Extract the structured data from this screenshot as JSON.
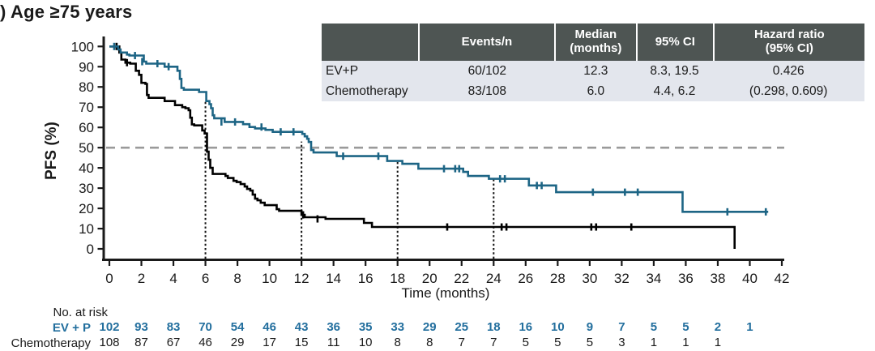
{
  "title": ") Age ≥75 years",
  "colors": {
    "evp_curve": "#1d6585",
    "chemo_curve": "#000000",
    "at_risk_evp_text": "#236f9e",
    "table_header_bg": "#4e5553",
    "table_row_bg": "#e3e6ed",
    "median_reference_line": "#9a9a9a",
    "axis": "#1a1a1a"
  },
  "table": {
    "headers": [
      "",
      "Events/n",
      "Median\n(months)",
      "95% CI",
      "Hazard ratio\n(95% CI)"
    ],
    "rows": [
      {
        "cells": [
          "EV+P",
          "60/102",
          "12.3",
          "8.3, 19.5",
          "0.426"
        ]
      },
      {
        "cells": [
          "Chemotherapy",
          "83/108",
          "6.0",
          "4.4, 6.2",
          "(0.298, 0.609)"
        ]
      }
    ]
  },
  "chart_data": {
    "type": "line",
    "subtype": "kaplan-meier-step",
    "title": ") Age ≥75 years",
    "xlabel": "Time (months)",
    "ylabel": "PFS (%)",
    "xlim": [
      0,
      42
    ],
    "ylim": [
      0,
      100
    ],
    "xtick_step": 2,
    "ytick_step": 10,
    "grid": false,
    "median_reference_line_y": 50,
    "landmark_lines": [
      {
        "x": 6,
        "top": 73
      },
      {
        "x": 12,
        "top": 53
      },
      {
        "x": 18,
        "top": 43
      },
      {
        "x": 24,
        "top": 34.6
      }
    ],
    "series": [
      {
        "name": "EV+P",
        "color": "#1d6585",
        "median_months": 12.3,
        "steps": [
          [
            0,
            100
          ],
          [
            0.45,
            100
          ],
          [
            0.55,
            98.5
          ],
          [
            0.7,
            97
          ],
          [
            1.1,
            96
          ],
          [
            1.25,
            95.5
          ],
          [
            2.15,
            92.5
          ],
          [
            2.3,
            91.5
          ],
          [
            3.45,
            90
          ],
          [
            4.25,
            88
          ],
          [
            4.4,
            84
          ],
          [
            4.5,
            79.5
          ],
          [
            4.65,
            78.6
          ],
          [
            5.6,
            77.5
          ],
          [
            6.05,
            73
          ],
          [
            6.25,
            71.5
          ],
          [
            6.35,
            69.5
          ],
          [
            6.45,
            66
          ],
          [
            6.55,
            64.5
          ],
          [
            7.2,
            62.7
          ],
          [
            8.35,
            61.6
          ],
          [
            8.75,
            60.2
          ],
          [
            9.1,
            59.5
          ],
          [
            9.75,
            58.8
          ],
          [
            10.2,
            57.8
          ],
          [
            12.05,
            56.8
          ],
          [
            12.2,
            55.6
          ],
          [
            12.35,
            54.4
          ],
          [
            12.45,
            52.8
          ],
          [
            12.6,
            48.8
          ],
          [
            12.75,
            47.6
          ],
          [
            14.2,
            45.8
          ],
          [
            17.35,
            43.4
          ],
          [
            18.3,
            42
          ],
          [
            19.3,
            39.6
          ],
          [
            22.1,
            38
          ],
          [
            22.4,
            36
          ],
          [
            23.7,
            34.6
          ],
          [
            26.2,
            31.3
          ],
          [
            27.9,
            28
          ],
          [
            35.8,
            18.3
          ],
          [
            41.15,
            18.3
          ]
        ],
        "censors": [
          [
            0.3,
            100
          ],
          [
            1.6,
            95.5
          ],
          [
            2.05,
            92.5
          ],
          [
            3.0,
            91.5
          ],
          [
            3.7,
            90
          ],
          [
            7.0,
            62.7
          ],
          [
            7.85,
            62.7
          ],
          [
            9.5,
            60.2
          ],
          [
            10.7,
            57.8
          ],
          [
            11.5,
            57.8
          ],
          [
            14.6,
            45.8
          ],
          [
            16.8,
            45.8
          ],
          [
            20.9,
            39.6
          ],
          [
            21.6,
            39.6
          ],
          [
            21.85,
            39.6
          ],
          [
            24.4,
            34.6
          ],
          [
            24.7,
            34.6
          ],
          [
            26.7,
            31.3
          ],
          [
            27.0,
            31.3
          ],
          [
            30.2,
            28
          ],
          [
            32.2,
            28
          ],
          [
            33.0,
            28
          ],
          [
            38.6,
            18.3
          ],
          [
            41.0,
            18.3
          ]
        ]
      },
      {
        "name": "Chemotherapy",
        "color": "#000000",
        "median_months": 6.0,
        "steps": [
          [
            0,
            100
          ],
          [
            0.55,
            100
          ],
          [
            0.62,
            97
          ],
          [
            0.75,
            93.5
          ],
          [
            1.0,
            92
          ],
          [
            1.3,
            91.5
          ],
          [
            1.65,
            88
          ],
          [
            1.85,
            86
          ],
          [
            2.0,
            82
          ],
          [
            2.25,
            81.5
          ],
          [
            2.35,
            76
          ],
          [
            2.45,
            74.6
          ],
          [
            3.45,
            73
          ],
          [
            4.1,
            71
          ],
          [
            4.55,
            70
          ],
          [
            4.75,
            69.5
          ],
          [
            4.95,
            68.5
          ],
          [
            5.05,
            64.8
          ],
          [
            5.15,
            61.5
          ],
          [
            5.3,
            61
          ],
          [
            5.8,
            58.5
          ],
          [
            5.95,
            57
          ],
          [
            6.1,
            48
          ],
          [
            6.2,
            44
          ],
          [
            6.3,
            40
          ],
          [
            6.45,
            37
          ],
          [
            7.25,
            36
          ],
          [
            7.4,
            35
          ],
          [
            7.75,
            33.6
          ],
          [
            7.95,
            33
          ],
          [
            8.2,
            32
          ],
          [
            8.45,
            30.8
          ],
          [
            8.6,
            29.6
          ],
          [
            8.8,
            28.8
          ],
          [
            8.95,
            26.8
          ],
          [
            9.1,
            24.8
          ],
          [
            9.25,
            24
          ],
          [
            9.45,
            22.8
          ],
          [
            9.7,
            21.6
          ],
          [
            10.45,
            19.6
          ],
          [
            10.6,
            18.8
          ],
          [
            12.0,
            16.8
          ],
          [
            12.2,
            15.6
          ],
          [
            13.5,
            14.8
          ],
          [
            15.9,
            12.8
          ],
          [
            16.4,
            10.8
          ],
          [
            39.05,
            10.8
          ],
          [
            39.05,
            0
          ]
        ],
        "censors": [
          [
            0.45,
            100
          ],
          [
            1.1,
            92
          ],
          [
            12.1,
            16.8
          ],
          [
            13.0,
            14.8
          ],
          [
            21.1,
            10.8
          ],
          [
            24.5,
            10.8
          ],
          [
            24.8,
            10.8
          ],
          [
            30.1,
            10.8
          ],
          [
            30.4,
            10.8
          ],
          [
            32.6,
            10.8
          ]
        ]
      }
    ]
  },
  "at_risk": {
    "title": "No. at risk",
    "times": [
      0,
      2,
      4,
      6,
      8,
      10,
      12,
      14,
      16,
      18,
      20,
      22,
      24,
      26,
      28,
      30,
      32,
      34,
      36,
      38,
      40
    ],
    "rows": [
      {
        "label": "EV + P",
        "values": [
          102,
          93,
          83,
          70,
          54,
          46,
          43,
          36,
          35,
          33,
          29,
          25,
          18,
          16,
          10,
          9,
          7,
          5,
          5,
          2,
          1
        ]
      },
      {
        "label": "Chemotherapy",
        "values": [
          108,
          87,
          67,
          46,
          29,
          17,
          15,
          11,
          10,
          8,
          8,
          7,
          7,
          5,
          5,
          5,
          3,
          1,
          1,
          1
        ]
      }
    ]
  }
}
